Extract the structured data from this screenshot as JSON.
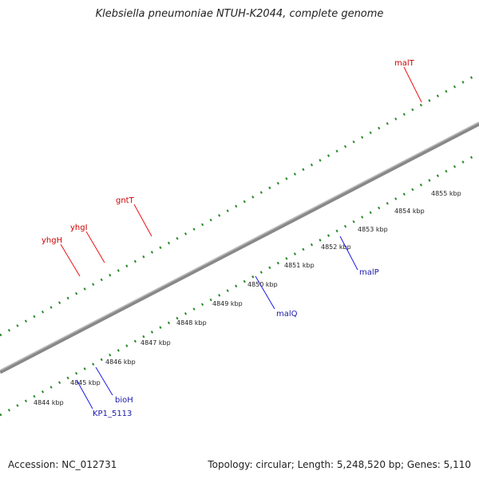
{
  "title": "Klebsiella pneumoniae NTUH-K2044, complete genome",
  "footer": {
    "accession": "Accession: NC_012731",
    "info": "Topology: circular; Length: 5,248,520 bp; Genes: 5,110"
  },
  "kbp_labels": [
    "4844 kbp",
    "4845 kbp",
    "4846 kbp",
    "4847 kbp",
    "4848 kbp",
    "4849 kbp",
    "4850 kbp",
    "4851 kbp",
    "4852 kbp",
    "4853 kbp",
    "4854 kbp",
    "4855 kbp"
  ],
  "gene_labels": {
    "malT": "malT",
    "gntT": "gntT",
    "yhgI": "yhgI",
    "yhgH": "yhgH",
    "malP": "malP",
    "malQ": "malQ",
    "bioH": "bioH",
    "KP1_5113": "KP1_5113"
  },
  "colors": {
    "red": "#ee1111",
    "blue": "#1a1ae8",
    "cyan": "#1ec8c8",
    "orange": "#ff9a10",
    "grey": "#c8c8c8",
    "olive": "#bcb070",
    "steelblue": "#4a7fb5",
    "navy": "#3d3d8c",
    "tick": "#2a8a2a",
    "axis": "#888888"
  }
}
